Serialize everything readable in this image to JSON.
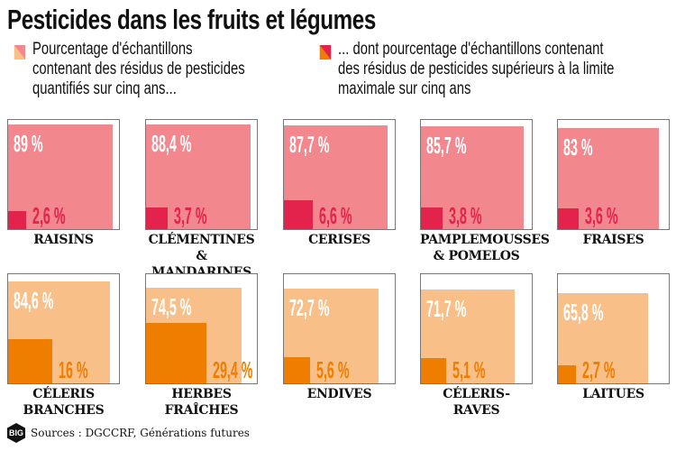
{
  "title": "Pesticides dans les fruits et légumes",
  "legend": [
    {
      "lines": [
        "Pourcentage d'échantillons",
        "contenant des résidus de pesticides",
        "quantifiés sur cinq ans..."
      ]
    },
    {
      "lines": [
        "... dont pourcentage d'échantillons contenant",
        "des résidus de pesticides supérieurs à la limite",
        "maximale sur cinq ans"
      ]
    }
  ],
  "colors": {
    "fruit_light": "#f2878d",
    "fruit_dark": "#e3234b",
    "veg_light": "#f8c088",
    "veg_dark": "#ef7d00"
  },
  "chart_data": {
    "type": "area-squares",
    "title": "Pesticides dans les fruits et légumes",
    "series": [
      {
        "name": "Pourcentage d'échantillons contenant des résidus de pesticides quantifiés sur cinq ans",
        "unit": "%"
      },
      {
        "name": "dont pourcentage d'échantillons contenant des résidus supérieurs à la limite maximale",
        "unit": "%"
      }
    ],
    "items": [
      {
        "name": [
          "RAISINS"
        ],
        "group": "fruit",
        "quantified": 89,
        "quantified_label": "89 %",
        "above_limit": 2.6,
        "above_label": "2,6 %"
      },
      {
        "name": [
          "CLÉMENTINES",
          "& MANDARINES"
        ],
        "group": "fruit",
        "quantified": 88.4,
        "quantified_label": "88,4 %",
        "above_limit": 3.7,
        "above_label": "3,7 %"
      },
      {
        "name": [
          "CERISES"
        ],
        "group": "fruit",
        "quantified": 87.7,
        "quantified_label": "87,7 %",
        "above_limit": 6.6,
        "above_label": "6,6 %"
      },
      {
        "name": [
          "PAMPLEMOUSSES",
          "& POMELOS"
        ],
        "group": "fruit",
        "quantified": 85.7,
        "quantified_label": "85,7 %",
        "above_limit": 3.8,
        "above_label": "3,8 %"
      },
      {
        "name": [
          "FRAISES"
        ],
        "group": "fruit",
        "quantified": 83,
        "quantified_label": "83 %",
        "above_limit": 3.6,
        "above_label": "3,6 %"
      },
      {
        "name": [
          "CÉLERIS",
          "BRANCHES"
        ],
        "group": "veg",
        "quantified": 84.6,
        "quantified_label": "84,6 %",
        "above_limit": 16,
        "above_label": "16 %"
      },
      {
        "name": [
          "HERBES",
          "FRAÎCHES"
        ],
        "group": "veg",
        "quantified": 74.5,
        "quantified_label": "74,5 %",
        "above_limit": 29.4,
        "above_label": "29,4 %"
      },
      {
        "name": [
          "ENDIVES"
        ],
        "group": "veg",
        "quantified": 72.7,
        "quantified_label": "72,7 %",
        "above_limit": 5.6,
        "above_label": "5,6 %"
      },
      {
        "name": [
          "CÉLERIS-RAVES"
        ],
        "group": "veg",
        "quantified": 71.7,
        "quantified_label": "71,7 %",
        "above_limit": 5.1,
        "above_label": "5,1 %"
      },
      {
        "name": [
          "LAITUES"
        ],
        "group": "veg",
        "quantified": 65.8,
        "quantified_label": "65,8 %",
        "above_limit": 2.7,
        "above_label": "2,7 %"
      }
    ]
  },
  "source": "Sources : DGCCRF, Générations futures",
  "logo_text": "BIG"
}
